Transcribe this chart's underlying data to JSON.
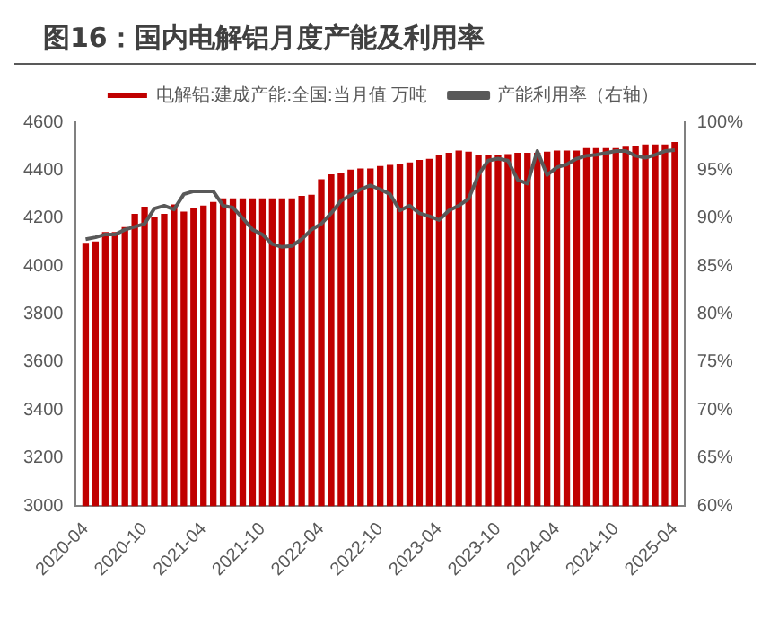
{
  "chart_data": {
    "type": "bar",
    "title": "图16：国内电解铝月度产能及利用率",
    "x": [
      "2020-04",
      "2020-05",
      "2020-06",
      "2020-07",
      "2020-08",
      "2020-09",
      "2020-10",
      "2020-11",
      "2020-12",
      "2021-01",
      "2021-02",
      "2021-03",
      "2021-04",
      "2021-05",
      "2021-06",
      "2021-07",
      "2021-08",
      "2021-09",
      "2021-10",
      "2021-11",
      "2021-12",
      "2022-01",
      "2022-02",
      "2022-03",
      "2022-04",
      "2022-05",
      "2022-06",
      "2022-07",
      "2022-08",
      "2022-09",
      "2022-10",
      "2022-11",
      "2022-12",
      "2023-01",
      "2023-02",
      "2023-03",
      "2023-04",
      "2023-05",
      "2023-06",
      "2023-07",
      "2023-08",
      "2023-09",
      "2023-10",
      "2023-11",
      "2023-12",
      "2024-01",
      "2024-02",
      "2024-03",
      "2024-04",
      "2024-05",
      "2024-06",
      "2024-07",
      "2024-08",
      "2024-09",
      "2024-10",
      "2024-11",
      "2024-12",
      "2025-01",
      "2025-02",
      "2025-03",
      "2025-04"
    ],
    "series": [
      {
        "name": "电解铝:建成产能:全国:当月值 万吨",
        "color": "#c00000",
        "values": [
          4095,
          4100,
          4140,
          4140,
          4160,
          4215,
          4245,
          4200,
          4215,
          4255,
          4225,
          4240,
          4250,
          4265,
          4280,
          4280,
          4280,
          4280,
          4280,
          4280,
          4280,
          4280,
          4290,
          4295,
          4360,
          4380,
          4385,
          4400,
          4405,
          4405,
          4415,
          4420,
          4425,
          4430,
          4440,
          4445,
          4460,
          4470,
          4480,
          4475,
          4460,
          4460,
          4460,
          4465,
          4470,
          4470,
          4470,
          4475,
          4480,
          4480,
          4480,
          4490,
          4490,
          4490,
          4490,
          4495,
          4500,
          4505,
          4505,
          4505,
          4515
        ]
      },
      {
        "name": "产能利用率（右轴）",
        "type": "line",
        "axis": "y2",
        "color": "#595959",
        "values": [
          87.8,
          88.0,
          88.3,
          88.3,
          88.8,
          89.1,
          89.4,
          91.0,
          91.3,
          90.9,
          92.5,
          92.8,
          92.8,
          92.8,
          91.3,
          91.1,
          90.0,
          88.8,
          88.3,
          87.3,
          87.0,
          87.1,
          87.8,
          88.8,
          89.4,
          90.5,
          91.8,
          92.4,
          93.0,
          93.4,
          93.0,
          92.5,
          90.8,
          91.3,
          90.5,
          90.2,
          89.8,
          90.8,
          91.3,
          92.0,
          94.5,
          96.0,
          96.2,
          96.0,
          94.0,
          93.6,
          97.0,
          94.5,
          95.3,
          95.6,
          96.2,
          96.5,
          96.6,
          96.8,
          97.0,
          97.0,
          96.5,
          96.3,
          96.6,
          97.0,
          97.1
        ]
      }
    ],
    "xlim": [
      "2020-03",
      "2025-05"
    ],
    "xticks": [
      "2020-04",
      "2020-10",
      "2021-04",
      "2021-10",
      "2022-04",
      "2022-10",
      "2023-04",
      "2023-10",
      "2024-04",
      "2024-10",
      "2025-04"
    ],
    "ylim": [
      3000,
      4600
    ],
    "yticks": [
      3000,
      3200,
      3400,
      3600,
      3800,
      4000,
      4200,
      4400,
      4600
    ],
    "y2lim": [
      60,
      100
    ],
    "y2ticks": [
      {
        "value": 60,
        "label": "60%"
      },
      {
        "value": 65,
        "label": "65%"
      },
      {
        "value": 70,
        "label": "70%"
      },
      {
        "value": 75,
        "label": "75%"
      },
      {
        "value": 80,
        "label": "80%"
      },
      {
        "value": 85,
        "label": "85%"
      },
      {
        "value": 90,
        "label": "90%"
      },
      {
        "value": 95,
        "label": "95%"
      },
      {
        "value": 100,
        "label": "100%"
      }
    ],
    "grid": false,
    "legend": "top",
    "marker": "none",
    "line_style": "solid"
  }
}
